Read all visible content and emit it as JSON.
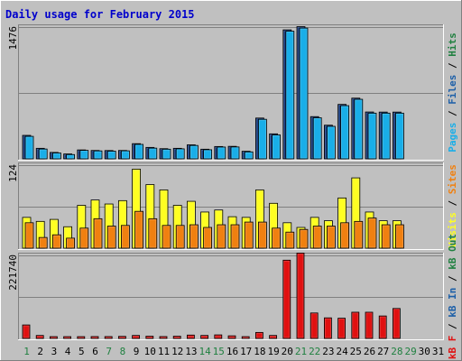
{
  "chart_data": {
    "type": "bar",
    "title": "Daily usage for February 2015",
    "categories": [
      "1",
      "2",
      "3",
      "4",
      "5",
      "6",
      "7",
      "8",
      "9",
      "10",
      "11",
      "12",
      "13",
      "14",
      "15",
      "16",
      "17",
      "18",
      "19",
      "20",
      "21",
      "22",
      "23",
      "24",
      "25",
      "26",
      "27",
      "28",
      "29",
      "30",
      "31"
    ],
    "weekend_days": [
      "1",
      "7",
      "8",
      "14",
      "15",
      "21",
      "22",
      "28",
      "29"
    ],
    "colors": {
      "background": "#c0c0c0",
      "pages": "#1c5fa8",
      "files": "#19aee8",
      "hits": "#1a3e82",
      "visits": "#ffff22",
      "sites": "#f08010",
      "kb": "#e01010",
      "title": "#0000cc",
      "weekend_label": "#208040",
      "weekday_label": "#000000"
    },
    "panels": [
      {
        "name": "hits-files-pages",
        "axis_max_label": "1476",
        "ylim": [
          0,
          1476
        ],
        "legend": [
          {
            "text": "Pages",
            "color": "#19aee8"
          },
          {
            "text": " / ",
            "color": "#000000"
          },
          {
            "text": "Files",
            "color": "#1c5fa8"
          },
          {
            "text": " / ",
            "color": "#000000"
          },
          {
            "text": "Hits",
            "color": "#208040"
          }
        ],
        "series": [
          {
            "name": "Hits",
            "color": "#1a3e82",
            "values": [
              263,
              118,
              72,
              55,
              100,
              94,
              93,
              94,
              170,
              128,
              114,
              118,
              157,
              108,
              138,
              140,
              85,
              457,
              280,
              1445,
              1481,
              473,
              377,
              610,
              680,
              525,
              524,
              524,
              0,
              0,
              0
            ]
          },
          {
            "name": "Files",
            "color": "#19aee8",
            "values": [
              252,
              110,
              66,
              48,
              95,
              89,
              86,
              90,
              162,
              120,
              108,
              112,
              150,
              102,
              132,
              133,
              78,
              443,
              268,
              1430,
              1465,
              460,
              364,
              596,
              667,
              512,
              512,
              512,
              0,
              0,
              0
            ]
          }
        ]
      },
      {
        "name": "visits-sites",
        "axis_max_label": "124",
        "ylim": [
          0,
          124
        ],
        "legend": [
          {
            "text": "Visits",
            "color": "#ffff22"
          },
          {
            "text": " / ",
            "color": "#000000"
          },
          {
            "text": "Sites",
            "color": "#f08010"
          }
        ],
        "series": [
          {
            "name": "Visits",
            "color": "#ffff22",
            "values": [
              46,
              40,
              43,
              32,
              64,
              72,
              66,
              71,
              118,
              95,
              87,
              64,
              70,
              54,
              57,
              47,
              46,
              87,
              67,
              38,
              31,
              46,
              41,
              75,
              105,
              54,
              41,
              41,
              0,
              0,
              0
            ]
          },
          {
            "name": "Sites",
            "color": "#f08010",
            "values": [
              38,
              16,
              20,
              15,
              30,
              44,
              33,
              34,
              55,
              44,
              34,
              34,
              35,
              31,
              35,
              35,
              39,
              39,
              30,
              24,
              28,
              33,
              33,
              38,
              40,
              45,
              35,
              35,
              0,
              0,
              0
            ]
          }
        ]
      },
      {
        "name": "kbytes",
        "axis_max_label": "221740",
        "ylim": [
          0,
          221740
        ],
        "legend": [
          {
            "text": "kB F",
            "color": "#e01010"
          },
          {
            "text": " / ",
            "color": "#000000"
          },
          {
            "text": "kB In",
            "color": "#1c5fa8"
          },
          {
            "text": " / ",
            "color": "#000000"
          },
          {
            "text": "kB Out",
            "color": "#208040"
          }
        ],
        "series": [
          {
            "name": "kB F",
            "color": "#e01010",
            "values": [
              36000,
              8000,
              4000,
              3000,
              4000,
              5000,
              5000,
              5500,
              8000,
              6000,
              5000,
              6000,
              9000,
              8000,
              9500,
              7000,
              4000,
              16000,
              8000,
              209000,
              228000,
              68000,
              55000,
              54000,
              70000,
              70000,
              60000,
              80000,
              0,
              0,
              0
            ]
          }
        ]
      }
    ]
  }
}
